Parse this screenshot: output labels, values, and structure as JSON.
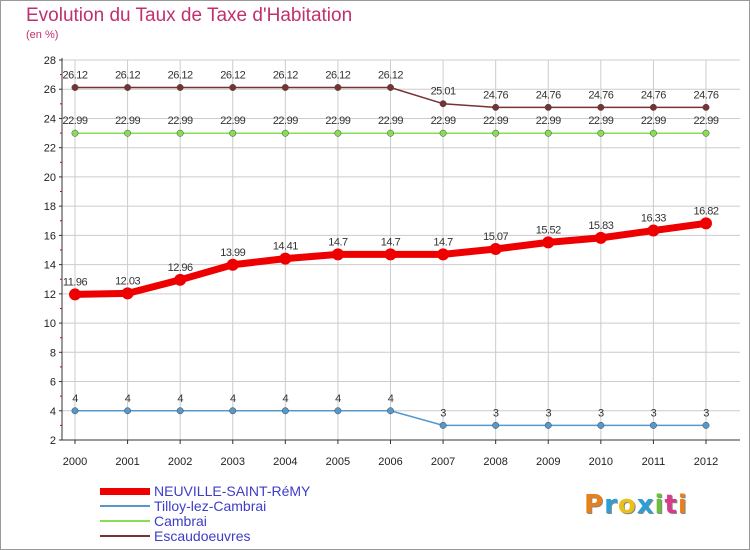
{
  "title": "Evolution du Taux de Taxe d'Habitation",
  "unit_label": "(en %)",
  "logo_text": "Proxiti",
  "colors": {
    "title": "#c0306e",
    "legend_text": "#3d3dc8",
    "grid": "#cccccc",
    "axis": "#333333",
    "neuville": "#ee0000",
    "tilloy": "#5599cc",
    "cambrai": "#88dd55",
    "escaudoeuvres": "#773333"
  },
  "chart_data": {
    "type": "line",
    "title": "Evolution du Taux de Taxe d'Habitation",
    "ylabel": "(en %)",
    "xlabel": "",
    "x": [
      "2000",
      "2001",
      "2002",
      "2003",
      "2004",
      "2005",
      "2006",
      "2007",
      "2008",
      "2009",
      "2010",
      "2011",
      "2012"
    ],
    "ylim": [
      2,
      28
    ],
    "yticks": [
      2,
      4,
      6,
      8,
      10,
      12,
      14,
      16,
      18,
      20,
      22,
      24,
      26,
      28
    ],
    "grid": true,
    "legend_position": "bottom-left",
    "series": [
      {
        "name": "NEUVILLE-SAINT-RéMY",
        "color": "#ee0000",
        "values": [
          11.96,
          12.03,
          12.96,
          13.99,
          14.41,
          14.7,
          14.7,
          14.7,
          15.07,
          15.52,
          15.83,
          16.33,
          16.82
        ],
        "labels": [
          "11.96",
          "12.03",
          "12.96",
          "13.99",
          "14.41",
          "14.7",
          "14.7",
          "14.7",
          "15.07",
          "15.52",
          "15.83",
          "16.33",
          "16.82"
        ]
      },
      {
        "name": "Tilloy-lez-Cambrai",
        "color": "#5599cc",
        "values": [
          4,
          4,
          4,
          4,
          4,
          4,
          4,
          3,
          3,
          3,
          3,
          3,
          3
        ],
        "labels": [
          "4",
          "4",
          "4",
          "4",
          "4",
          "4",
          "4",
          "3",
          "3",
          "3",
          "3",
          "3",
          "3"
        ]
      },
      {
        "name": "Cambrai",
        "color": "#88dd55",
        "values": [
          22.99,
          22.99,
          22.99,
          22.99,
          22.99,
          22.99,
          22.99,
          22.99,
          22.99,
          22.99,
          22.99,
          22.99,
          22.99
        ],
        "labels": [
          "22.99",
          "22.99",
          "22.99",
          "22.99",
          "22.99",
          "22.99",
          "22.99",
          "22.99",
          "22.99",
          "22.99",
          "22.99",
          "22.99",
          "22.99"
        ]
      },
      {
        "name": "Escaudoeuvres",
        "color": "#773333",
        "values": [
          26.12,
          26.12,
          26.12,
          26.12,
          26.12,
          26.12,
          26.12,
          25.01,
          24.76,
          24.76,
          24.76,
          24.76,
          24.76
        ],
        "labels": [
          "26.12",
          "26.12",
          "26.12",
          "26.12",
          "26.12",
          "26.12",
          "26.12",
          "25.01",
          "24.76",
          "24.76",
          "24.76",
          "24.76",
          "24.76"
        ]
      }
    ]
  }
}
